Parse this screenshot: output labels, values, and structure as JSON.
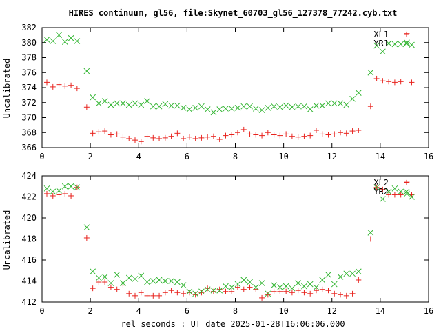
{
  "chart_data": {
    "title": "HIRES continuum, gl56, file:Skynet_60703_gl56_127378_77242.cyb.txt",
    "xlabel": "rel seconds : UT date 2025-01-28T16:06:06.000",
    "colors": {
      "XL1": "#e8231e",
      "YR1": "#33b533",
      "XL2": "#e8231e",
      "YR2": "#33b533"
    },
    "panels": [
      {
        "type": "scatter",
        "ylabel": "Uncalibrated",
        "xlim": [
          0,
          16
        ],
        "ylim": [
          366,
          382
        ],
        "xticks": [
          0,
          2,
          4,
          6,
          8,
          10,
          12,
          14,
          16
        ],
        "yticks": [
          366,
          368,
          370,
          372,
          374,
          376,
          378,
          380,
          382
        ],
        "legend_position": "top-right",
        "series": [
          {
            "name": "XL1",
            "marker": "plus",
            "x": [
              0.2,
              0.45,
              0.7,
              0.95,
              1.2,
              1.45,
              1.85,
              2.1,
              2.35,
              2.6,
              2.85,
              3.1,
              3.35,
              3.6,
              3.85,
              4.1,
              4.35,
              4.6,
              4.85,
              5.1,
              5.35,
              5.6,
              5.85,
              6.1,
              6.35,
              6.6,
              6.85,
              7.1,
              7.35,
              7.6,
              7.85,
              8.1,
              8.35,
              8.6,
              8.85,
              9.1,
              9.35,
              9.6,
              9.85,
              10.1,
              10.35,
              10.6,
              10.85,
              11.1,
              11.35,
              11.6,
              11.85,
              12.1,
              12.35,
              12.6,
              12.85,
              13.1,
              13.6,
              13.85,
              14.1,
              14.35,
              14.6,
              14.85,
              15.1,
              15.3
            ],
            "y": [
              374.7,
              374.1,
              374.4,
              374.2,
              374.3,
              373.9,
              371.4,
              367.9,
              368.1,
              368.2,
              367.7,
              367.8,
              367.4,
              367.2,
              367.0,
              366.8,
              367.5,
              367.3,
              367.2,
              367.3,
              367.5,
              367.9,
              367.2,
              367.4,
              367.2,
              367.3,
              367.4,
              367.5,
              367.1,
              367.6,
              367.7,
              368.0,
              368.4,
              367.8,
              367.7,
              367.6,
              368.0,
              367.7,
              367.6,
              367.8,
              367.5,
              367.4,
              367.5,
              367.6,
              368.3,
              367.8,
              367.7,
              367.8,
              368.0,
              367.9,
              368.2,
              368.3,
              371.5,
              375.2,
              374.9,
              374.8,
              374.7,
              374.8,
              381.2,
              374.7
            ]
          },
          {
            "name": "YR1",
            "marker": "cross",
            "x": [
              0.2,
              0.45,
              0.7,
              0.95,
              1.2,
              1.45,
              1.85,
              2.1,
              2.35,
              2.6,
              2.85,
              3.1,
              3.35,
              3.6,
              3.85,
              4.1,
              4.35,
              4.6,
              4.85,
              5.1,
              5.35,
              5.6,
              5.85,
              6.1,
              6.35,
              6.6,
              6.85,
              7.1,
              7.35,
              7.6,
              7.85,
              8.1,
              8.35,
              8.6,
              8.85,
              9.1,
              9.35,
              9.6,
              9.85,
              10.1,
              10.35,
              10.6,
              10.85,
              11.1,
              11.35,
              11.6,
              11.85,
              12.1,
              12.35,
              12.6,
              12.85,
              13.1,
              13.6,
              13.85,
              14.1,
              14.35,
              14.6,
              14.85,
              15.1,
              15.3
            ],
            "y": [
              380.4,
              380.2,
              381.0,
              380.1,
              380.6,
              380.2,
              376.2,
              372.7,
              371.9,
              372.2,
              371.7,
              371.9,
              371.9,
              371.7,
              371.9,
              371.7,
              372.2,
              371.5,
              371.5,
              371.8,
              371.6,
              371.6,
              371.3,
              371.1,
              371.3,
              371.5,
              371.1,
              370.7,
              371.1,
              371.2,
              371.2,
              371.3,
              371.5,
              371.5,
              371.2,
              371.0,
              371.3,
              371.5,
              371.4,
              371.6,
              371.4,
              371.5,
              371.5,
              371.1,
              371.6,
              371.6,
              371.9,
              371.9,
              371.9,
              371.7,
              372.5,
              373.3,
              376.0,
              379.6,
              378.8,
              379.9,
              379.8,
              379.8,
              380.0,
              379.7
            ]
          }
        ]
      },
      {
        "type": "scatter",
        "ylabel": "Uncalibrated",
        "xlim": [
          0,
          16
        ],
        "ylim": [
          412,
          424
        ],
        "xticks": [
          0,
          2,
          4,
          6,
          8,
          10,
          12,
          14,
          16
        ],
        "yticks": [
          412,
          414,
          416,
          418,
          420,
          422,
          424
        ],
        "legend_position": "top-right",
        "series": [
          {
            "name": "XL2",
            "marker": "plus",
            "x": [
              0.2,
              0.45,
              0.7,
              0.95,
              1.2,
              1.45,
              1.85,
              2.1,
              2.35,
              2.6,
              2.85,
              3.1,
              3.35,
              3.6,
              3.85,
              4.1,
              4.35,
              4.6,
              4.85,
              5.1,
              5.35,
              5.6,
              5.85,
              6.1,
              6.35,
              6.6,
              6.85,
              7.1,
              7.35,
              7.6,
              7.85,
              8.1,
              8.35,
              8.6,
              8.85,
              9.1,
              9.35,
              9.6,
              9.85,
              10.1,
              10.35,
              10.6,
              10.85,
              11.1,
              11.35,
              11.6,
              11.85,
              12.1,
              12.35,
              12.6,
              12.85,
              13.1,
              13.6,
              13.85,
              14.1,
              14.35,
              14.6,
              14.85,
              15.1,
              15.3
            ],
            "y": [
              422.3,
              422.1,
              422.2,
              422.3,
              422.1,
              422.9,
              418.1,
              413.3,
              413.9,
              413.9,
              413.4,
              413.2,
              413.6,
              412.8,
              412.6,
              412.9,
              412.6,
              412.6,
              412.6,
              412.9,
              413.1,
              412.9,
              412.8,
              412.9,
              412.7,
              412.9,
              413.3,
              413.0,
              413.2,
              413.0,
              413.0,
              413.4,
              413.2,
              413.4,
              413.2,
              412.4,
              412.7,
              413.0,
              413.0,
              413.0,
              412.9,
              413.1,
              412.9,
              412.8,
              413.1,
              413.2,
              413.1,
              412.8,
              412.7,
              412.6,
              412.8,
              414.1,
              418.0,
              422.9,
              422.7,
              422.2,
              422.2,
              422.2,
              423.4,
              422.2
            ]
          },
          {
            "name": "YR2",
            "marker": "cross",
            "x": [
              0.2,
              0.45,
              0.7,
              0.95,
              1.2,
              1.45,
              1.85,
              2.1,
              2.35,
              2.6,
              2.85,
              3.1,
              3.35,
              3.6,
              3.85,
              4.1,
              4.35,
              4.6,
              4.85,
              5.1,
              5.35,
              5.6,
              5.85,
              6.1,
              6.35,
              6.6,
              6.85,
              7.1,
              7.35,
              7.6,
              7.85,
              8.1,
              8.35,
              8.6,
              8.85,
              9.1,
              9.35,
              9.6,
              9.85,
              10.1,
              10.35,
              10.6,
              10.85,
              11.1,
              11.35,
              11.6,
              11.85,
              12.1,
              12.35,
              12.6,
              12.85,
              13.1,
              13.6,
              13.85,
              14.1,
              14.35,
              14.6,
              14.85,
              15.1,
              15.3
            ],
            "y": [
              422.8,
              422.5,
              422.6,
              423.0,
              423.0,
              422.9,
              419.1,
              414.9,
              414.3,
              414.4,
              413.8,
              414.6,
              413.8,
              414.3,
              414.2,
              414.5,
              413.9,
              414.0,
              414.1,
              414.0,
              414.0,
              413.9,
              413.6,
              413.0,
              412.8,
              413.0,
              413.2,
              413.1,
              413.1,
              413.5,
              413.4,
              413.7,
              414.1,
              413.9,
              413.4,
              413.8,
              412.8,
              413.6,
              413.4,
              413.5,
              413.3,
              413.8,
              413.5,
              413.7,
              413.4,
              414.1,
              414.6,
              413.7,
              414.4,
              414.7,
              414.7,
              414.9,
              418.6,
              422.9,
              421.8,
              422.5,
              422.8,
              422.5,
              422.3,
              422.0
            ]
          }
        ]
      }
    ]
  }
}
